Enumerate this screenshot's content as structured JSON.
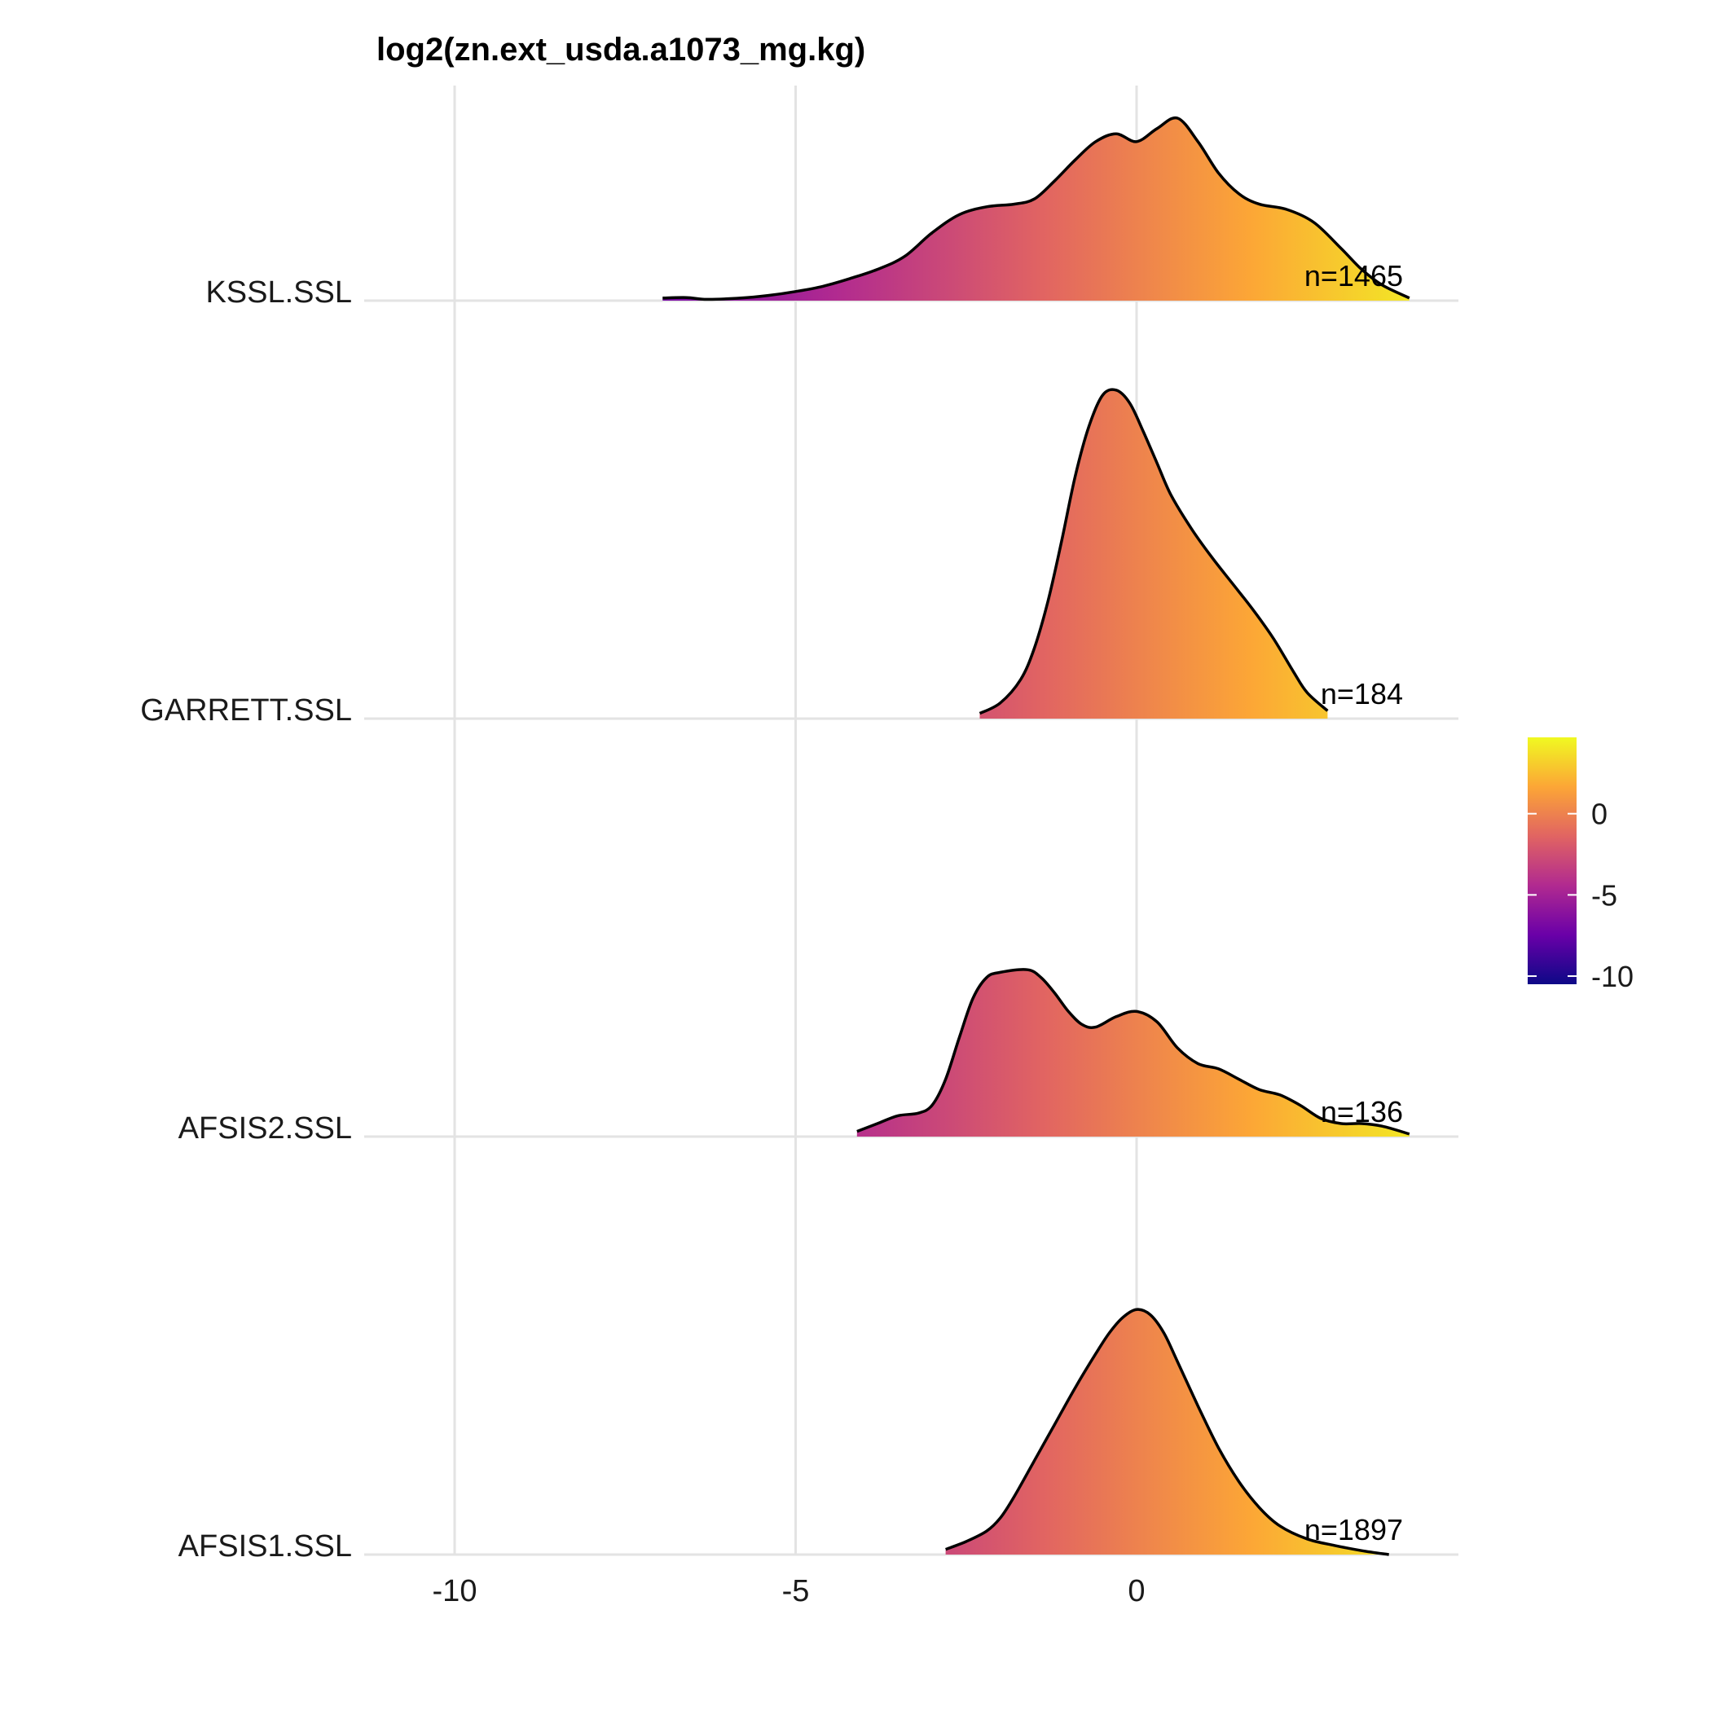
{
  "chart_data": {
    "type": "ridgeline",
    "title": "log2(zn.ext_usda.a1073_mg.kg)",
    "xlabel": "",
    "ylabel": "",
    "xlim": [
      -13.0,
      4.8
    ],
    "x_ticks": [
      -10,
      -5,
      0
    ],
    "x_tick_labels": [
      "-10",
      "-5",
      "0"
    ],
    "grid": true,
    "color_scale": {
      "palette": "plasma",
      "domain": [
        -10.5,
        4.7
      ],
      "ticks": [
        0,
        -5,
        -10
      ],
      "tick_labels": [
        "0",
        "-5",
        "-10"
      ],
      "colors": [
        "#0d0887",
        "#6a00a8",
        "#b12a90",
        "#e16462",
        "#fca636",
        "#f0f921"
      ]
    },
    "series": [
      {
        "name": "AFSIS1.SSL",
        "n_label": "n=1897",
        "x": [
          -2.8,
          -2.5,
          -2.2,
          -2.0,
          -1.8,
          -1.5,
          -1.2,
          -0.9,
          -0.6,
          -0.4,
          -0.2,
          0.0,
          0.2,
          0.4,
          0.6,
          0.9,
          1.2,
          1.5,
          1.8,
          2.1,
          2.5,
          2.9,
          3.3,
          3.7
        ],
        "y": [
          0.02,
          0.05,
          0.09,
          0.14,
          0.22,
          0.36,
          0.5,
          0.64,
          0.77,
          0.85,
          0.91,
          0.94,
          0.92,
          0.85,
          0.74,
          0.57,
          0.41,
          0.28,
          0.18,
          0.11,
          0.06,
          0.035,
          0.015,
          0.0
        ]
      },
      {
        "name": "AFSIS2.SSL",
        "n_label": "n=136",
        "x": [
          -4.1,
          -3.8,
          -3.5,
          -3.2,
          -3.0,
          -2.8,
          -2.6,
          -2.4,
          -2.2,
          -2.0,
          -1.6,
          -1.4,
          -1.2,
          -1.0,
          -0.8,
          -0.6,
          -0.3,
          0.0,
          0.3,
          0.6,
          0.9,
          1.2,
          1.5,
          1.8,
          2.1,
          2.4,
          2.7,
          3.0,
          3.3,
          3.6,
          4.0
        ],
        "y": [
          0.02,
          0.05,
          0.08,
          0.09,
          0.12,
          0.22,
          0.38,
          0.53,
          0.61,
          0.63,
          0.64,
          0.61,
          0.55,
          0.48,
          0.43,
          0.42,
          0.46,
          0.48,
          0.44,
          0.34,
          0.28,
          0.26,
          0.22,
          0.18,
          0.16,
          0.12,
          0.07,
          0.05,
          0.05,
          0.04,
          0.01
        ]
      },
      {
        "name": "GARRETT.SSL",
        "n_label": "n=184",
        "x": [
          -2.3,
          -2.0,
          -1.7,
          -1.5,
          -1.3,
          -1.1,
          -0.9,
          -0.7,
          -0.5,
          -0.3,
          -0.1,
          0.1,
          0.3,
          0.5,
          0.8,
          1.1,
          1.4,
          1.7,
          2.0,
          2.3,
          2.5,
          2.8
        ],
        "y": [
          0.02,
          0.06,
          0.15,
          0.27,
          0.45,
          0.68,
          0.93,
          1.12,
          1.24,
          1.26,
          1.21,
          1.1,
          0.98,
          0.86,
          0.73,
          0.62,
          0.52,
          0.42,
          0.31,
          0.18,
          0.1,
          0.03
        ]
      },
      {
        "name": "KSSL.SSL",
        "n_label": "n=1465",
        "x": [
          -6.95,
          -6.6,
          -6.3,
          -5.8,
          -5.4,
          -5.0,
          -4.6,
          -4.2,
          -3.8,
          -3.4,
          -3.0,
          -2.6,
          -2.2,
          -1.8,
          -1.5,
          -1.2,
          -0.9,
          -0.6,
          -0.3,
          0.0,
          0.3,
          0.6,
          0.9,
          1.2,
          1.5,
          1.8,
          2.2,
          2.6,
          3.0,
          3.3,
          3.6,
          4.0
        ],
        "y": [
          0.01,
          0.012,
          0.005,
          0.01,
          0.02,
          0.035,
          0.055,
          0.085,
          0.12,
          0.17,
          0.26,
          0.33,
          0.36,
          0.37,
          0.39,
          0.46,
          0.54,
          0.61,
          0.64,
          0.61,
          0.66,
          0.7,
          0.61,
          0.49,
          0.41,
          0.37,
          0.35,
          0.3,
          0.2,
          0.12,
          0.06,
          0.01
        ]
      }
    ]
  }
}
